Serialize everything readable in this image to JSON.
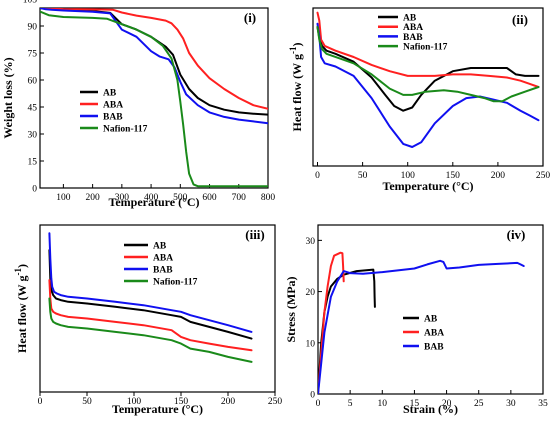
{
  "chart_data": [
    {
      "type": "line",
      "panel_label": "(i)",
      "xlabel": "Temperature (°C)",
      "ylabel": "Weight loss (%)",
      "xlim": [
        20,
        800
      ],
      "ylim": [
        0,
        100
      ],
      "xticks": [
        100,
        200,
        300,
        400,
        500,
        600,
        700,
        800
      ],
      "yticks": [
        0,
        15,
        30,
        45,
        60,
        75,
        90,
        105
      ],
      "legend_position": "center-left",
      "series": [
        {
          "name": "AB",
          "color": "#000000",
          "x": [
            20,
            40,
            60,
            100,
            200,
            260,
            300,
            350,
            400,
            450,
            475,
            500,
            530,
            560,
            600,
            650,
            700,
            750,
            800
          ],
          "y": [
            100,
            99.6,
            99.4,
            99,
            98.3,
            97.3,
            91,
            88,
            84,
            78.5,
            74,
            63,
            55,
            50,
            46,
            43.5,
            42,
            41.3,
            40.8
          ]
        },
        {
          "name": "ABA",
          "color": "#ff2020",
          "x": [
            20,
            40,
            60,
            100,
            200,
            270,
            300,
            350,
            400,
            450,
            470,
            490,
            510,
            530,
            560,
            600,
            650,
            700,
            750,
            800
          ],
          "y": [
            100,
            99.8,
            99.6,
            99.4,
            99.2,
            99,
            97.5,
            95.8,
            94.5,
            93,
            91.5,
            88,
            83,
            75,
            68,
            61,
            55,
            50,
            46,
            44
          ]
        },
        {
          "name": "BAB",
          "color": "#1010f0",
          "x": [
            20,
            40,
            60,
            100,
            200,
            260,
            300,
            350,
            400,
            430,
            460,
            480,
            500,
            520,
            560,
            600,
            650,
            700,
            750,
            800
          ],
          "y": [
            100,
            99.3,
            99,
            98.6,
            97.9,
            97,
            88,
            84,
            76,
            73,
            71.5,
            67,
            59,
            52,
            46,
            42,
            39.5,
            38,
            37,
            36
          ]
        },
        {
          "name": "Nafion-117",
          "color": "#1a8a1a",
          "x": [
            20,
            50,
            100,
            200,
            250,
            300,
            350,
            400,
            440,
            470,
            490,
            500,
            510,
            520,
            530,
            545,
            560,
            600,
            700,
            800
          ],
          "y": [
            98,
            96,
            95,
            94.5,
            94,
            91,
            88,
            84,
            79,
            72,
            60,
            48,
            35,
            20,
            8,
            2,
            1,
            1,
            1,
            1
          ]
        }
      ]
    },
    {
      "type": "line",
      "panel_label": "(ii)",
      "xlabel": "Temperature (°C)",
      "ylabel": "Heat flow (W g",
      "ylabel_sup": "-1",
      "ylabel_end": ")",
      "xlim": [
        -5,
        250
      ],
      "ylim": [
        0,
        1
      ],
      "xticks": [
        0,
        50,
        100,
        150,
        200,
        250
      ],
      "legend_position": "top-right",
      "series": [
        {
          "name": "AB",
          "color": "#000000",
          "x": [
            0,
            2,
            5,
            10,
            20,
            40,
            60,
            75,
            85,
            95,
            105,
            115,
            130,
            150,
            170,
            180,
            200,
            210,
            220,
            230,
            245
          ],
          "y": [
            0.88,
            0.81,
            0.76,
            0.73,
            0.71,
            0.66,
            0.56,
            0.45,
            0.38,
            0.35,
            0.37,
            0.45,
            0.54,
            0.6,
            0.62,
            0.62,
            0.62,
            0.62,
            0.58,
            0.57,
            0.57
          ]
        },
        {
          "name": "ABA",
          "color": "#ff2020",
          "x": [
            0,
            2,
            4,
            8,
            20,
            40,
            60,
            80,
            100,
            130,
            150,
            170,
            190,
            210,
            225,
            235,
            245
          ],
          "y": [
            0.97,
            0.92,
            0.8,
            0.76,
            0.73,
            0.69,
            0.64,
            0.6,
            0.57,
            0.57,
            0.58,
            0.58,
            0.57,
            0.56,
            0.54,
            0.52,
            0.5
          ]
        },
        {
          "name": "BAB",
          "color": "#1010f0",
          "x": [
            0,
            2,
            4,
            8,
            20,
            40,
            60,
            80,
            95,
            105,
            115,
            130,
            150,
            165,
            180,
            195,
            210,
            225,
            235,
            245
          ],
          "y": [
            0.9,
            0.82,
            0.69,
            0.65,
            0.63,
            0.57,
            0.43,
            0.25,
            0.14,
            0.12,
            0.15,
            0.27,
            0.38,
            0.43,
            0.44,
            0.42,
            0.4,
            0.35,
            0.32,
            0.29
          ]
        },
        {
          "name": "Nafion-117",
          "color": "#1a8a1a",
          "x": [
            0,
            2,
            5,
            10,
            25,
            40,
            60,
            80,
            95,
            105,
            120,
            140,
            155,
            170,
            185,
            195,
            205,
            215,
            230,
            245
          ],
          "y": [
            0.88,
            0.8,
            0.74,
            0.71,
            0.68,
            0.65,
            0.58,
            0.49,
            0.45,
            0.45,
            0.47,
            0.48,
            0.47,
            0.45,
            0.43,
            0.41,
            0.41,
            0.44,
            0.47,
            0.5
          ]
        }
      ]
    },
    {
      "type": "line",
      "panel_label": "(iii)",
      "xlabel": "Temperature (°C)",
      "ylabel": "Heat flow (W g",
      "ylabel_sup": "-1",
      "ylabel_end": ")",
      "xlim": [
        0,
        250
      ],
      "ylim": [
        0,
        1
      ],
      "xticks": [
        0,
        50,
        100,
        150,
        200,
        250
      ],
      "legend_position": "top-right",
      "series": [
        {
          "name": "AB",
          "color": "#000000",
          "x": [
            10,
            11,
            12,
            14,
            17,
            22,
            30,
            50,
            80,
            110,
            140,
            150,
            160,
            180,
            200,
            225
          ],
          "y": [
            0.85,
            0.68,
            0.61,
            0.58,
            0.56,
            0.55,
            0.54,
            0.53,
            0.51,
            0.49,
            0.46,
            0.45,
            0.42,
            0.39,
            0.36,
            0.32
          ]
        },
        {
          "name": "ABA",
          "color": "#ff2020",
          "x": [
            10,
            11,
            12,
            14,
            17,
            22,
            30,
            50,
            80,
            110,
            140,
            150,
            160,
            180,
            200,
            225
          ],
          "y": [
            0.67,
            0.56,
            0.5,
            0.48,
            0.47,
            0.46,
            0.45,
            0.44,
            0.42,
            0.4,
            0.37,
            0.33,
            0.31,
            0.29,
            0.27,
            0.25
          ]
        },
        {
          "name": "BAB",
          "color": "#1010f0",
          "x": [
            10,
            11,
            12,
            13,
            15,
            18,
            22,
            30,
            50,
            80,
            110,
            140,
            150,
            160,
            180,
            200,
            225
          ],
          "y": [
            0.95,
            0.8,
            0.68,
            0.63,
            0.6,
            0.59,
            0.58,
            0.57,
            0.56,
            0.54,
            0.52,
            0.49,
            0.48,
            0.46,
            0.43,
            0.4,
            0.36
          ]
        },
        {
          "name": "Nafion-117",
          "color": "#1a8a1a",
          "x": [
            10,
            11,
            12,
            14,
            17,
            22,
            30,
            50,
            80,
            110,
            140,
            150,
            160,
            180,
            200,
            225
          ],
          "y": [
            0.56,
            0.48,
            0.44,
            0.42,
            0.41,
            0.4,
            0.39,
            0.38,
            0.36,
            0.34,
            0.31,
            0.29,
            0.26,
            0.24,
            0.21,
            0.18
          ]
        }
      ]
    },
    {
      "type": "line",
      "panel_label": "(iv)",
      "xlabel": "Strain (%)",
      "ylabel": "Stress (MPa)",
      "xlim": [
        0,
        35
      ],
      "ylim": [
        0,
        33
      ],
      "xticks": [
        0,
        5,
        10,
        15,
        20,
        25,
        30,
        35
      ],
      "yticks": [
        0,
        10,
        20,
        30
      ],
      "legend_position": "center-left",
      "series": [
        {
          "name": "AB",
          "color": "#000000",
          "x": [
            0,
            0.5,
            1,
            1.5,
            2,
            3,
            4,
            6,
            8.6,
            8.75,
            8.8,
            8.85
          ],
          "y": [
            0,
            10,
            16,
            19,
            21,
            22.5,
            23.3,
            24,
            24.3,
            22,
            19,
            17
          ]
        },
        {
          "name": "ABA",
          "color": "#ff2020",
          "x": [
            0,
            0.5,
            1,
            1.5,
            2,
            2.5,
            3,
            3.5,
            3.8,
            3.9,
            4.0
          ],
          "y": [
            0,
            8,
            16,
            21,
            25,
            27,
            27.3,
            27.6,
            27.5,
            25,
            22
          ]
        },
        {
          "name": "BAB",
          "color": "#1010f0",
          "x": [
            0,
            0.5,
            1,
            2,
            3,
            4,
            5,
            7,
            10,
            15,
            17,
            19,
            19.5,
            20,
            22,
            25,
            28,
            31,
            31.5,
            32
          ],
          "y": [
            0,
            6,
            12,
            19,
            22,
            24,
            23.6,
            23.5,
            23.8,
            24.5,
            25.3,
            26,
            25.8,
            24.5,
            24.7,
            25.2,
            25.4,
            25.6,
            25.3,
            25
          ]
        }
      ]
    }
  ]
}
